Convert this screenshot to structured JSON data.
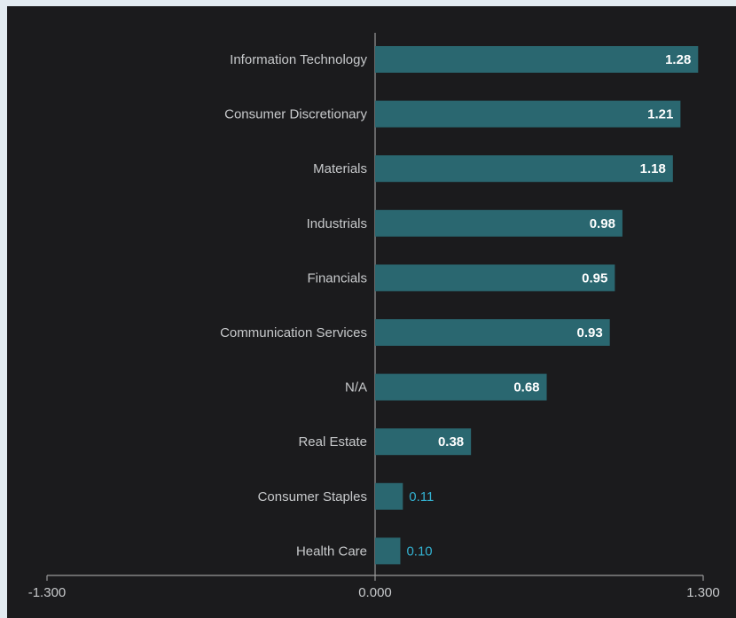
{
  "chart_data": {
    "type": "bar",
    "orientation": "horizontal",
    "categories": [
      "Information Technology",
      "Consumer Discretionary",
      "Materials",
      "Industrials",
      "Financials",
      "Communication Services",
      "N/A",
      "Real Estate",
      "Consumer Staples",
      "Health Care"
    ],
    "values": [
      1.28,
      1.21,
      1.18,
      0.98,
      0.95,
      0.93,
      0.68,
      0.38,
      0.11,
      0.1
    ],
    "value_labels": [
      "1.28",
      "1.21",
      "1.18",
      "0.98",
      "0.95",
      "0.93",
      "0.68",
      "0.38",
      "0.11",
      "0.10"
    ],
    "xlim": [
      -1.3,
      1.3
    ],
    "x_ticks": [
      -1.3,
      0,
      1.3
    ],
    "x_tick_labels": [
      "-1.300",
      "0.000",
      "1.300"
    ],
    "title": "",
    "xlabel": "",
    "ylabel": "",
    "grid": false,
    "legend": "none",
    "colors": {
      "background": "#1b1b1d",
      "page": "#e3ebf1",
      "bar": "#2a6770",
      "axis": "#9a9a9a",
      "label": "#c7c9cb",
      "value_inside": "#ffffff",
      "value_outside": "#33b1d0"
    }
  }
}
